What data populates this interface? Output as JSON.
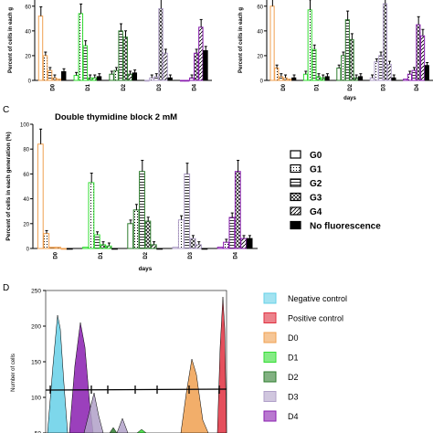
{
  "colors": {
    "G0": "#f0a050",
    "D1": "#33dd33",
    "D2": "#2e7d2e",
    "D3": "#b0a0c8",
    "D4": "#8a1fb0",
    "neg": "#66d0e8",
    "pos": "#e03040",
    "black": "#000000"
  },
  "chart_data": [
    {
      "panel": "",
      "type": "bar",
      "title": "",
      "xlabel": "",
      "ylabel": "Percent of cells in each g",
      "categories": [
        "D0",
        "D1",
        "D2",
        "D3",
        "D4"
      ],
      "ylim": [
        0,
        65
      ],
      "yticks": [
        0,
        20,
        40,
        60
      ],
      "series": [
        {
          "key": "G0",
          "values": [
            52,
            4,
            5,
            0,
            0
          ]
        },
        {
          "key": "G1",
          "values": [
            20,
            54,
            8,
            2,
            0
          ]
        },
        {
          "key": "G2",
          "values": [
            8,
            28,
            40,
            3,
            2
          ]
        },
        {
          "key": "G3",
          "values": [
            2,
            2,
            35,
            58,
            22
          ]
        },
        {
          "key": "G4",
          "values": [
            1,
            2,
            5,
            22,
            43
          ]
        },
        {
          "key": "NF",
          "values": [
            7,
            3,
            6,
            2,
            24
          ]
        }
      ]
    },
    {
      "panel": "",
      "type": "bar",
      "title": "",
      "xlabel": "days",
      "ylabel": "Percent of cells in each g",
      "categories": [
        "D0",
        "D1",
        "D2",
        "D3",
        "D4"
      ],
      "ylim": [
        0,
        65
      ],
      "yticks": [
        0,
        20,
        40,
        60
      ],
      "series": [
        {
          "key": "G0",
          "values": [
            60,
            5,
            10,
            2,
            1
          ]
        },
        {
          "key": "G1",
          "values": [
            10,
            57,
            20,
            15,
            5
          ]
        },
        {
          "key": "G2",
          "values": [
            3,
            25,
            49,
            20,
            8
          ]
        },
        {
          "key": "G3",
          "values": [
            2,
            3,
            33,
            62,
            45
          ]
        },
        {
          "key": "G4",
          "values": [
            1,
            2,
            2,
            13,
            36
          ]
        },
        {
          "key": "NF",
          "values": [
            2,
            3,
            3,
            2,
            12
          ]
        }
      ]
    },
    {
      "panel": "C",
      "type": "bar",
      "title": "Double thymidine block 2 mM",
      "xlabel": "days",
      "ylabel": "Percent of cells in each generation (%)",
      "categories": [
        "D0",
        "D1",
        "D2",
        "D3",
        "D4"
      ],
      "ylim": [
        0,
        100
      ],
      "yticks": [
        0,
        20,
        40,
        60,
        80,
        100
      ],
      "series": [
        {
          "key": "G0",
          "values": [
            84,
            1,
            20,
            1,
            1
          ]
        },
        {
          "key": "G1",
          "values": [
            12,
            53,
            31,
            23,
            5
          ]
        },
        {
          "key": "G2",
          "values": [
            1,
            11,
            62,
            60,
            25
          ]
        },
        {
          "key": "G3",
          "values": [
            1,
            3,
            22,
            8,
            62
          ]
        },
        {
          "key": "G4",
          "values": [
            0,
            2,
            3,
            3,
            8
          ]
        },
        {
          "key": "NF",
          "values": [
            0,
            0,
            0,
            0,
            8
          ]
        }
      ],
      "legend": [
        {
          "key": "G0",
          "label": "G0"
        },
        {
          "key": "G1",
          "label": "G1"
        },
        {
          "key": "G2",
          "label": "G2"
        },
        {
          "key": "G3",
          "label": "G3"
        },
        {
          "key": "G4",
          "label": "G4"
        },
        {
          "key": "NF",
          "label": "No fluorescence"
        }
      ]
    },
    {
      "panel": "D",
      "type": "area",
      "title": "",
      "ylabel": "Number of cells",
      "ylim": [
        50,
        250
      ],
      "yticks": [
        50,
        100,
        150,
        200,
        250
      ],
      "legend": [
        {
          "label": "Negative control",
          "color": "#66d0e8"
        },
        {
          "label": "Positive control",
          "color": "#e03040"
        },
        {
          "label": "D0",
          "color": "#f0a050"
        },
        {
          "label": "D1",
          "color": "#33dd33"
        },
        {
          "label": "D2",
          "color": "#2e7d2e"
        },
        {
          "label": "D3",
          "color": "#b0a0c8"
        },
        {
          "label": "D4",
          "color": "#8a1fb0"
        }
      ]
    }
  ]
}
